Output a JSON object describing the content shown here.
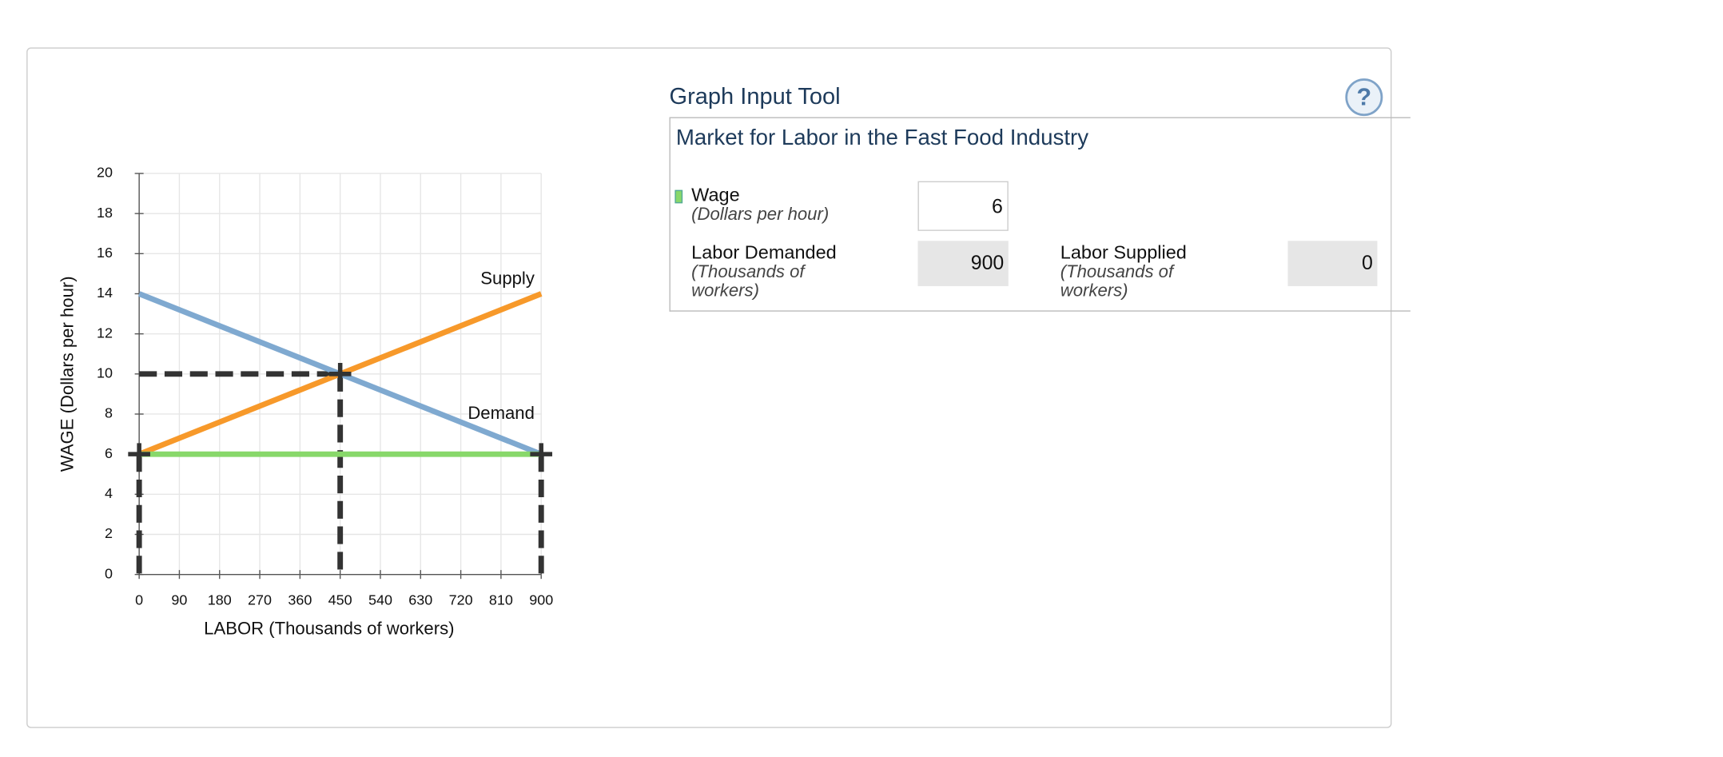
{
  "chart_data": {
    "type": "line",
    "xlabel": "LABOR (Thousands of workers)",
    "ylabel": "WAGE (Dollars per hour)",
    "xlim": [
      0,
      900
    ],
    "xticks": [
      0,
      90,
      180,
      270,
      360,
      450,
      540,
      630,
      720,
      810,
      900
    ],
    "ylim": [
      0,
      20
    ],
    "yticks": [
      0,
      2,
      4,
      6,
      8,
      10,
      12,
      14,
      16,
      18,
      20
    ],
    "grid": true,
    "series": [
      {
        "name": "Demand",
        "color": "#7fa9d0",
        "x": [
          0,
          900
        ],
        "values": [
          14,
          6
        ]
      },
      {
        "name": "Supply",
        "color": "#f7992a",
        "x": [
          0,
          900
        ],
        "values": [
          6,
          14
        ]
      },
      {
        "color": "#88d86a",
        "x": [
          0,
          900
        ],
        "values": [
          6,
          6
        ]
      }
    ],
    "markers": {
      "x": [
        450,
        0,
        900
      ],
      "values": [
        10,
        6,
        6
      ]
    }
  },
  "tool": {
    "title": "Graph Input Tool",
    "subtitle": "Market for Labor in the Fast Food Industry",
    "help": "?",
    "fields": [
      {
        "label": "Wage",
        "unit": "(Dollars per hour)",
        "value": "6"
      },
      {
        "label": "Labor Demanded",
        "unit": "(Thousands of workers)",
        "value": "900"
      },
      {
        "label": "Labor Supplied",
        "unit": "(Thousands of workers)",
        "value": "0"
      }
    ]
  }
}
